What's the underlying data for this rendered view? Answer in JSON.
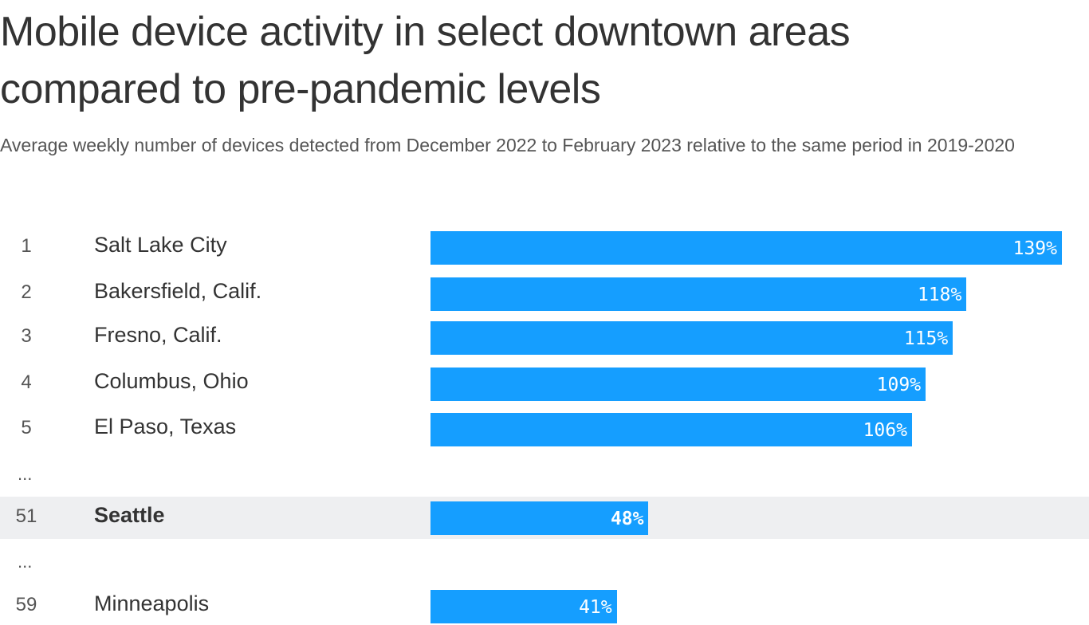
{
  "chart_data": {
    "type": "bar",
    "orientation": "horizontal",
    "title": "Mobile device activity in select downtown areas compared to pre-pandemic levels",
    "subtitle": "Average weekly number of devices detected from December 2022 to February 2023 relative to the same period in 2019-2020",
    "value_unit": "%",
    "bar_color": "#159eff",
    "highlight_color": "#eeeff1",
    "rows": [
      {
        "rank": "1",
        "city": "Salt Lake City",
        "value": 139,
        "label": "139%",
        "highlight": false
      },
      {
        "rank": "2",
        "city": "Bakersfield, Calif.",
        "value": 118,
        "label": "118%",
        "highlight": false
      },
      {
        "rank": "3",
        "city": "Fresno, Calif.",
        "value": 115,
        "label": "115%",
        "highlight": false
      },
      {
        "rank": "4",
        "city": "Columbus, Ohio",
        "value": 109,
        "label": "109%",
        "highlight": false
      },
      {
        "rank": "5",
        "city": "El Paso, Texas",
        "value": 106,
        "label": "106%",
        "highlight": false
      },
      {
        "ellipsis": "..."
      },
      {
        "rank": "51",
        "city": "Seattle",
        "value": 48,
        "label": "48%",
        "highlight": true
      },
      {
        "ellipsis": "..."
      },
      {
        "rank": "59",
        "city": "Minneapolis",
        "value": 41,
        "label": "41%",
        "highlight": false
      }
    ]
  }
}
